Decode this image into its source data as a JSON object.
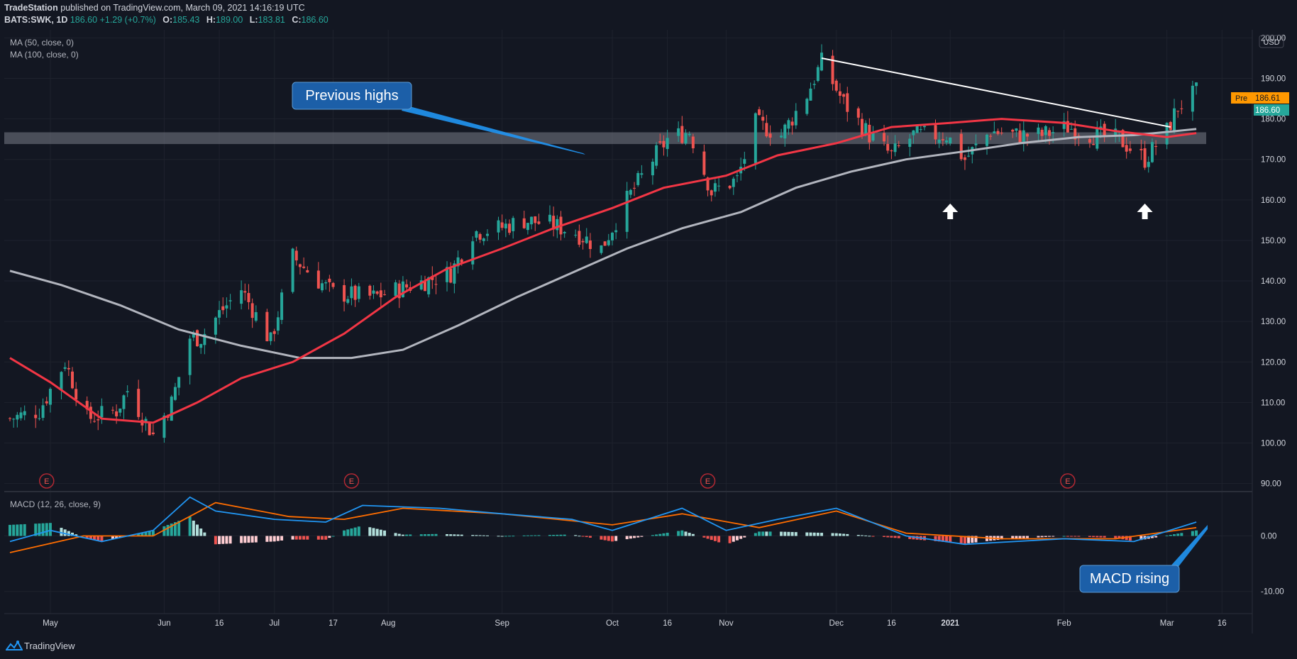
{
  "header": {
    "publisher": "TradeStation",
    "published_text": "published on TradingView.com, March 09, 2021 14:16:19 UTC",
    "symbol": "BATS:SWK, 1D",
    "last": "186.60",
    "change": "+1.29 (+0.7%)",
    "o_label": "O:",
    "o": "185.43",
    "h_label": "H:",
    "h": "189.00",
    "l_label": "L:",
    "l": "183.81",
    "c_label": "C:",
    "c": "186.60"
  },
  "indicators": {
    "ma50": "MA (50, close, 0)",
    "ma100": "MA (100, close, 0)",
    "macd": "MACD (12, 26, close, 9)"
  },
  "annotations": {
    "previous_highs": "Previous highs",
    "macd_rising": "MACD rising"
  },
  "price_badges": {
    "pre_label": "Pre",
    "pre_value": "186.61",
    "last_value": "186.60",
    "currency": "USD"
  },
  "footer": {
    "brand": "TradingView"
  },
  "colors": {
    "background": "#131722",
    "up": "#26a69a",
    "down": "#ef5350",
    "ma50": "#f23645",
    "ma100": "#b2b5be",
    "macd_line": "#2196f3",
    "signal_line": "#ff6d00",
    "annotation_box": "#1c5fa8",
    "pre_badge": "#ff9800"
  },
  "chart_data": [
    {
      "type": "candlestick",
      "title": "",
      "series_name": "",
      "x_ticks": [
        "May",
        "Jun",
        "16",
        "Jul",
        "17",
        "Aug",
        "Sep",
        "Oct",
        "16",
        "Nov",
        "Dec",
        "16",
        "2021",
        "Feb",
        "Mar",
        "16"
      ],
      "x_tick_dates": [
        "2020-05-01",
        "2020-06-01",
        "2020-06-16",
        "2020-07-01",
        "2020-07-17",
        "2020-08-01",
        "2020-09-01",
        "2020-10-01",
        "2020-10-16",
        "2020-11-01",
        "2020-12-01",
        "2020-12-16",
        "2021-01-01",
        "2021-02-01",
        "2021-03-01",
        "2021-03-16"
      ],
      "y_ticks": [
        "200.00",
        "190.00",
        "180.00",
        "170.00",
        "160.00",
        "150.00",
        "140.00",
        "130.00",
        "120.00",
        "110.00",
        "100.00",
        "90.00"
      ],
      "ylim": [
        88,
        202
      ],
      "xlim": [
        "2020-04-20",
        "2021-03-20"
      ],
      "close_points": [
        {
          "x": "2020-04-20",
          "y": 106
        },
        {
          "x": "2020-04-28",
          "y": 108
        },
        {
          "x": "2020-05-05",
          "y": 120
        },
        {
          "x": "2020-05-11",
          "y": 106
        },
        {
          "x": "2020-05-19",
          "y": 108
        },
        {
          "x": "2020-05-22",
          "y": 113
        },
        {
          "x": "2020-05-29",
          "y": 102
        },
        {
          "x": "2020-06-03",
          "y": 110
        },
        {
          "x": "2020-06-08",
          "y": 126
        },
        {
          "x": "2020-06-11",
          "y": 126
        },
        {
          "x": "2020-06-16",
          "y": 132
        },
        {
          "x": "2020-06-22",
          "y": 138
        },
        {
          "x": "2020-06-30",
          "y": 125
        },
        {
          "x": "2020-07-06",
          "y": 146
        },
        {
          "x": "2020-07-13",
          "y": 140
        },
        {
          "x": "2020-07-17",
          "y": 137
        },
        {
          "x": "2020-07-28",
          "y": 136
        },
        {
          "x": "2020-08-04",
          "y": 138
        },
        {
          "x": "2020-08-11",
          "y": 140
        },
        {
          "x": "2020-08-18",
          "y": 142
        },
        {
          "x": "2020-08-24",
          "y": 152
        },
        {
          "x": "2020-08-31",
          "y": 153
        },
        {
          "x": "2020-09-07",
          "y": 155
        },
        {
          "x": "2020-09-14",
          "y": 154
        },
        {
          "x": "2020-09-21",
          "y": 152
        },
        {
          "x": "2020-09-28",
          "y": 148
        },
        {
          "x": "2020-10-05",
          "y": 160
        },
        {
          "x": "2020-10-12",
          "y": 170
        },
        {
          "x": "2020-10-16",
          "y": 175
        },
        {
          "x": "2020-10-22",
          "y": 177
        },
        {
          "x": "2020-10-28",
          "y": 162
        },
        {
          "x": "2020-11-04",
          "y": 165
        },
        {
          "x": "2020-11-09",
          "y": 179
        },
        {
          "x": "2020-11-16",
          "y": 176
        },
        {
          "x": "2020-11-23",
          "y": 186
        },
        {
          "x": "2020-11-27",
          "y": 194
        },
        {
          "x": "2020-12-03",
          "y": 184
        },
        {
          "x": "2020-12-10",
          "y": 176
        },
        {
          "x": "2020-12-16",
          "y": 171
        },
        {
          "x": "2020-12-22",
          "y": 176
        },
        {
          "x": "2020-12-31",
          "y": 176
        },
        {
          "x": "2021-01-05",
          "y": 170
        },
        {
          "x": "2021-01-12",
          "y": 177
        },
        {
          "x": "2021-01-19",
          "y": 176
        },
        {
          "x": "2021-01-26",
          "y": 176
        },
        {
          "x": "2021-02-02",
          "y": 178
        },
        {
          "x": "2021-02-09",
          "y": 176
        },
        {
          "x": "2021-02-16",
          "y": 175
        },
        {
          "x": "2021-02-23",
          "y": 170
        },
        {
          "x": "2021-03-01",
          "y": 177
        },
        {
          "x": "2021-03-04",
          "y": 183
        },
        {
          "x": "2021-03-09",
          "y": 186.6
        }
      ],
      "ma50_points": [
        {
          "x": "2020-04-20",
          "y": 121
        },
        {
          "x": "2020-05-01",
          "y": 115
        },
        {
          "x": "2020-05-15",
          "y": 106
        },
        {
          "x": "2020-05-29",
          "y": 105
        },
        {
          "x": "2020-06-10",
          "y": 110
        },
        {
          "x": "2020-06-22",
          "y": 116
        },
        {
          "x": "2020-07-06",
          "y": 120
        },
        {
          "x": "2020-07-20",
          "y": 127
        },
        {
          "x": "2020-08-03",
          "y": 136
        },
        {
          "x": "2020-08-17",
          "y": 143
        },
        {
          "x": "2020-09-01",
          "y": 148
        },
        {
          "x": "2020-09-15",
          "y": 153
        },
        {
          "x": "2020-10-01",
          "y": 158
        },
        {
          "x": "2020-10-15",
          "y": 163
        },
        {
          "x": "2020-11-01",
          "y": 166
        },
        {
          "x": "2020-11-15",
          "y": 171
        },
        {
          "x": "2020-12-01",
          "y": 174
        },
        {
          "x": "2020-12-16",
          "y": 178
        },
        {
          "x": "2021-01-01",
          "y": 179
        },
        {
          "x": "2021-01-15",
          "y": 180
        },
        {
          "x": "2021-02-01",
          "y": 179
        },
        {
          "x": "2021-02-15",
          "y": 177
        },
        {
          "x": "2021-03-01",
          "y": 175.5
        },
        {
          "x": "2021-03-09",
          "y": 176.5
        }
      ],
      "ma100_points": [
        {
          "x": "2020-04-20",
          "y": 142.5
        },
        {
          "x": "2020-05-04",
          "y": 139
        },
        {
          "x": "2020-05-20",
          "y": 134
        },
        {
          "x": "2020-06-05",
          "y": 128
        },
        {
          "x": "2020-06-22",
          "y": 124
        },
        {
          "x": "2020-07-08",
          "y": 121
        },
        {
          "x": "2020-07-22",
          "y": 121
        },
        {
          "x": "2020-08-05",
          "y": 123
        },
        {
          "x": "2020-08-20",
          "y": 129
        },
        {
          "x": "2020-09-05",
          "y": 136
        },
        {
          "x": "2020-09-20",
          "y": 142
        },
        {
          "x": "2020-10-05",
          "y": 148
        },
        {
          "x": "2020-10-20",
          "y": 153
        },
        {
          "x": "2020-11-05",
          "y": 157
        },
        {
          "x": "2020-11-20",
          "y": 163
        },
        {
          "x": "2020-12-05",
          "y": 167
        },
        {
          "x": "2020-12-20",
          "y": 170
        },
        {
          "x": "2021-01-05",
          "y": 172
        },
        {
          "x": "2021-01-20",
          "y": 174
        },
        {
          "x": "2021-02-05",
          "y": 175.5
        },
        {
          "x": "2021-02-20",
          "y": 176
        },
        {
          "x": "2021-03-09",
          "y": 177.5
        }
      ],
      "resistance_zone": [
        173.8,
        176.7
      ],
      "trendline": [
        {
          "x": "2020-11-27",
          "y": 195
        },
        {
          "x": "2021-03-02",
          "y": 178
        }
      ],
      "earnings_markers": [
        "2020-04-30",
        "2020-07-22",
        "2020-10-27",
        "2021-02-02"
      ],
      "arrow_markers": [
        "2021-01-01",
        "2021-02-23"
      ]
    },
    {
      "type": "macd",
      "title": "",
      "y_ticks": [
        "0.00",
        "-10.00"
      ],
      "ylim": [
        -14,
        8
      ],
      "macd_points": [
        {
          "x": "2020-04-20",
          "y": -1
        },
        {
          "x": "2020-05-01",
          "y": 1
        },
        {
          "x": "2020-05-15",
          "y": -1
        },
        {
          "x": "2020-05-29",
          "y": 1
        },
        {
          "x": "2020-06-08",
          "y": 7
        },
        {
          "x": "2020-06-15",
          "y": 4.5
        },
        {
          "x": "2020-07-01",
          "y": 3
        },
        {
          "x": "2020-07-15",
          "y": 2.5
        },
        {
          "x": "2020-07-25",
          "y": 5.5
        },
        {
          "x": "2020-08-15",
          "y": 5
        },
        {
          "x": "2020-09-01",
          "y": 4
        },
        {
          "x": "2020-09-20",
          "y": 3
        },
        {
          "x": "2020-10-01",
          "y": 1
        },
        {
          "x": "2020-10-20",
          "y": 5
        },
        {
          "x": "2020-11-01",
          "y": 1
        },
        {
          "x": "2020-11-15",
          "y": 3
        },
        {
          "x": "2020-12-01",
          "y": 5
        },
        {
          "x": "2020-12-20",
          "y": 0
        },
        {
          "x": "2021-01-05",
          "y": -1.5
        },
        {
          "x": "2021-02-01",
          "y": -0.5
        },
        {
          "x": "2021-02-20",
          "y": -1
        },
        {
          "x": "2021-03-09",
          "y": 2.5
        }
      ],
      "signal_points": [
        {
          "x": "2020-04-20",
          "y": -3
        },
        {
          "x": "2020-05-10",
          "y": 0
        },
        {
          "x": "2020-05-29",
          "y": 0
        },
        {
          "x": "2020-06-15",
          "y": 6
        },
        {
          "x": "2020-07-05",
          "y": 3.5
        },
        {
          "x": "2020-07-20",
          "y": 3
        },
        {
          "x": "2020-08-05",
          "y": 5
        },
        {
          "x": "2020-09-01",
          "y": 4
        },
        {
          "x": "2020-10-01",
          "y": 2
        },
        {
          "x": "2020-10-20",
          "y": 4
        },
        {
          "x": "2020-11-10",
          "y": 1.5
        },
        {
          "x": "2020-12-01",
          "y": 4.5
        },
        {
          "x": "2020-12-20",
          "y": 0.5
        },
        {
          "x": "2021-01-15",
          "y": -0.5
        },
        {
          "x": "2021-02-15",
          "y": -0.5
        },
        {
          "x": "2021-03-09",
          "y": 1.5
        }
      ]
    }
  ]
}
